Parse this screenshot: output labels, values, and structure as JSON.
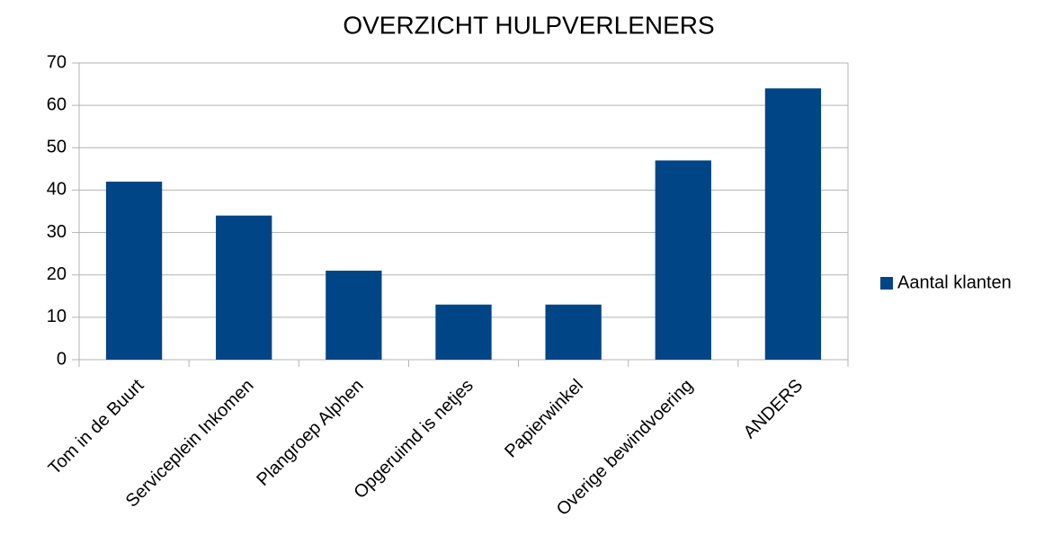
{
  "chart_data": {
    "type": "bar",
    "title": "OVERZICHT HULPVERLENERS",
    "categories": [
      "Tom in de Buurt",
      "Serviceplein Inkomen",
      "Plangroep Alphen",
      "Opgeruimd is netjes",
      "Papierwinkel",
      "Overige bewindvoering",
      "ANDERS"
    ],
    "series": [
      {
        "name": "Aantal klanten",
        "color": "#004586",
        "values": [
          42,
          34,
          21,
          13,
          13,
          47,
          64
        ]
      }
    ],
    "ylim": [
      0,
      70
    ],
    "yticks": [
      0,
      10,
      20,
      30,
      40,
      50,
      60,
      70
    ],
    "grid": true,
    "legend": "right"
  }
}
